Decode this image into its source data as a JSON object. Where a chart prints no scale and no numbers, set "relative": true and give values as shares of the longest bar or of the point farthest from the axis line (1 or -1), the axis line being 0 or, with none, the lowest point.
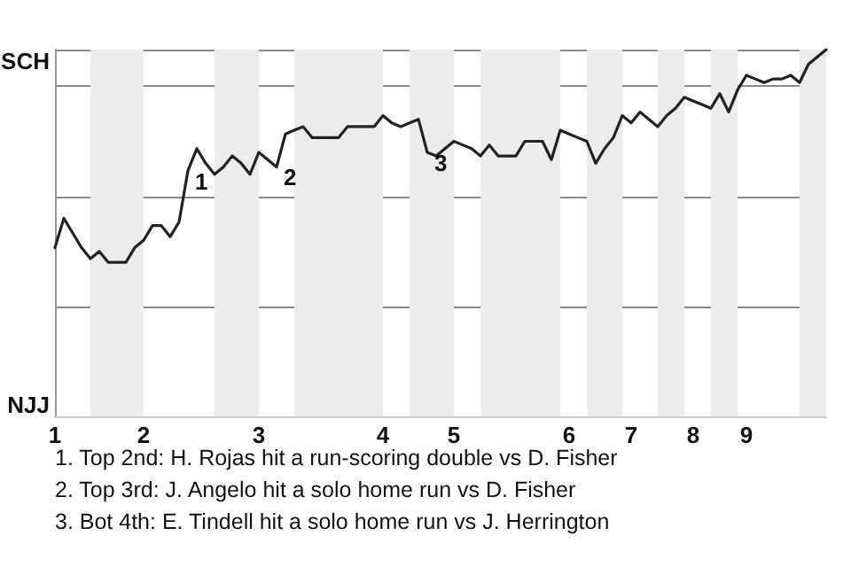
{
  "chart_data": {
    "type": "line",
    "relative": true,
    "categories": [
      "1",
      null,
      null,
      null,
      null,
      null,
      null,
      null,
      null,
      null,
      "2",
      null,
      null,
      null,
      null,
      null,
      null,
      null,
      null,
      null,
      null,
      null,
      null,
      "3",
      null,
      null,
      null,
      null,
      null,
      null,
      null,
      null,
      null,
      null,
      null,
      null,
      null,
      "4",
      null,
      null,
      null,
      null,
      null,
      null,
      null,
      "5",
      null,
      null,
      null,
      null,
      null,
      null,
      null,
      null,
      null,
      null,
      null,
      null,
      "6",
      null,
      null,
      null,
      null,
      null,
      null,
      "7",
      null,
      null,
      null,
      null,
      null,
      null,
      "8",
      null,
      null,
      null,
      null,
      null,
      "9",
      null,
      null,
      null,
      null,
      null,
      null,
      null,
      null,
      null
    ],
    "series": [
      {
        "color": "#222222",
        "values": [
          0.46,
          0.54,
          0.5,
          0.46,
          0.43,
          0.45,
          0.42,
          0.42,
          0.42,
          0.46,
          0.48,
          0.52,
          0.52,
          0.49,
          0.53,
          0.67,
          0.73,
          0.69,
          0.66,
          0.68,
          0.71,
          0.69,
          0.66,
          0.72,
          0.7,
          0.68,
          0.77,
          0.78,
          0.79,
          0.76,
          0.76,
          0.76,
          0.76,
          0.79,
          0.79,
          0.79,
          0.79,
          0.82,
          0.8,
          0.79,
          0.8,
          0.81,
          0.72,
          0.71,
          0.73,
          0.75,
          0.74,
          0.73,
          0.71,
          0.74,
          0.71,
          0.71,
          0.71,
          0.75,
          0.75,
          0.75,
          0.7,
          0.78,
          0.77,
          0.76,
          0.75,
          0.69,
          0.73,
          0.76,
          0.82,
          0.8,
          0.83,
          0.81,
          0.79,
          0.82,
          0.84,
          0.87,
          0.86,
          0.85,
          0.84,
          0.88,
          0.83,
          0.89,
          0.93,
          0.92,
          0.91,
          0.92,
          0.92,
          0.93,
          0.91,
          0.96,
          0.98,
          1.0
        ]
      }
    ],
    "grid": "y",
    "marker": "none",
    "line_style": "solid",
    "annotations": [
      "SCH",
      "NJJ",
      "1",
      "2",
      "3",
      "1. Top 2nd: H. Rojas hit a run-scoring double vs D. Fisher",
      "2. Top 3rd: J. Angelo hit a solo home run vs D. Fisher",
      "3. Bot 4th: E. Tindell hit a solo home run vs J. Herrington"
    ]
  }
}
